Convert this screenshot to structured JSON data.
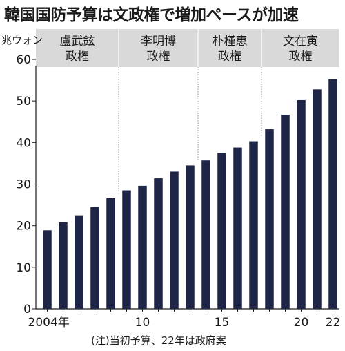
{
  "chart_data": {
    "type": "bar",
    "title": "韓国国防予算は文政権で増加ペースが加速",
    "unit_label": "兆ウォン",
    "footnote": "(注)当初予算、22年は政府案",
    "x": [
      2004,
      2005,
      2006,
      2007,
      2008,
      2009,
      2010,
      2011,
      2012,
      2013,
      2014,
      2015,
      2016,
      2017,
      2018,
      2019,
      2020,
      2021,
      2022
    ],
    "values": [
      18.9,
      20.8,
      22.5,
      24.5,
      26.6,
      28.5,
      29.6,
      31.4,
      33.0,
      34.5,
      35.7,
      37.5,
      38.8,
      40.3,
      43.2,
      46.7,
      50.2,
      52.8,
      55.2
    ],
    "x_tick_labels": [
      {
        "x": 2004,
        "label": "2004年"
      },
      {
        "x": 2010,
        "label": "10"
      },
      {
        "x": 2015,
        "label": "15"
      },
      {
        "x": 2020,
        "label": "20"
      },
      {
        "x": 2022,
        "label": "22"
      }
    ],
    "ylim": [
      0,
      60
    ],
    "y_ticks": [
      0,
      10,
      20,
      30,
      40,
      50,
      60
    ],
    "grid": false,
    "bar_color": "#1f2547",
    "band_color": "#d9d9d9",
    "administrations": [
      {
        "name": "盧武鉉\n政権",
        "start": 2004,
        "end": 2008
      },
      {
        "name": "李明博\n政権",
        "start": 2009,
        "end": 2013
      },
      {
        "name": "朴槿恵\n政権",
        "start": 2014,
        "end": 2017
      },
      {
        "name": "文在寅\n政権",
        "start": 2018,
        "end": 2022
      }
    ]
  }
}
